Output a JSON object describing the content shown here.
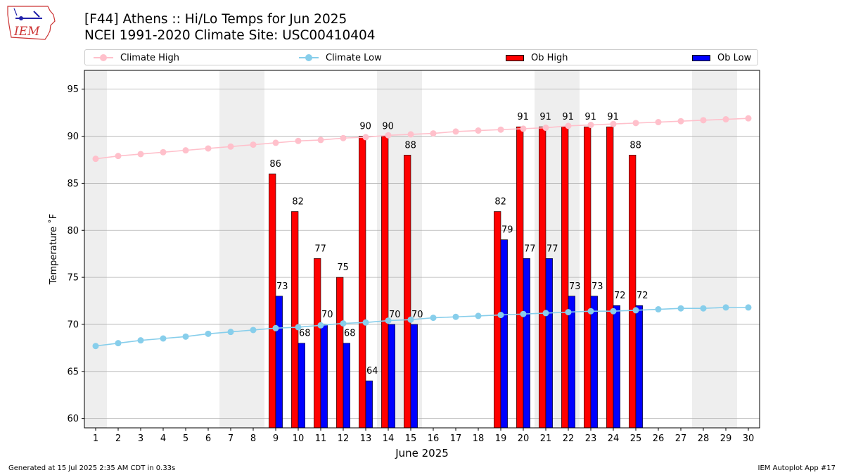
{
  "header": {
    "title_line1": "[F44] Athens :: Hi/Lo Temps for Jun 2025",
    "title_line2": "NCEI 1991-2020 Climate Site: USC00410404"
  },
  "logo": {
    "text": "IEM",
    "icon": "iem-iowa-weather-logo"
  },
  "legend": [
    {
      "label": "Climate High",
      "kind": "line",
      "color": "#ffc0cb"
    },
    {
      "label": "Climate Low",
      "kind": "line",
      "color": "#87ceeb"
    },
    {
      "label": "Ob High",
      "kind": "bar",
      "color": "#ff0000"
    },
    {
      "label": "Ob Low",
      "kind": "bar",
      "color": "#0000ff"
    }
  ],
  "footer": {
    "left": "Generated at 15 Jul 2025 2:35 AM CDT in 0.33s",
    "right": "IEM Autoplot App #17"
  },
  "chart_data": {
    "type": "bar",
    "title": "[F44] Athens :: Hi/Lo Temps for Jun 2025",
    "subtitle": "NCEI 1991-2020 Climate Site: USC00410404",
    "xlabel": "June 2025",
    "ylabel": "Temperature ˚F",
    "xlim": [
      0.5,
      30.5
    ],
    "ylim": [
      59,
      97
    ],
    "yticks": [
      60,
      65,
      70,
      75,
      80,
      85,
      90,
      95
    ],
    "grid": "horizontal",
    "legend_position": "top",
    "weekend_shading": [
      [
        0.5,
        1.5
      ],
      [
        6.5,
        8.5
      ],
      [
        13.5,
        15.5
      ],
      [
        20.5,
        22.5
      ],
      [
        27.5,
        29.5
      ]
    ],
    "shade_color": "#eeeeee",
    "days": [
      1,
      2,
      3,
      4,
      5,
      6,
      7,
      8,
      9,
      10,
      11,
      12,
      13,
      14,
      15,
      16,
      17,
      18,
      19,
      20,
      21,
      22,
      23,
      24,
      25,
      26,
      27,
      28,
      29,
      30
    ],
    "series": [
      {
        "name": "Climate High",
        "kind": "line",
        "color": "#ffc0cb",
        "values": [
          87.6,
          87.9,
          88.1,
          88.3,
          88.5,
          88.7,
          88.9,
          89.1,
          89.3,
          89.5,
          89.6,
          89.8,
          89.9,
          90.1,
          90.2,
          90.3,
          90.5,
          90.6,
          90.7,
          90.8,
          90.9,
          91.1,
          91.2,
          91.3,
          91.4,
          91.5,
          91.6,
          91.7,
          91.8,
          91.9
        ]
      },
      {
        "name": "Climate Low",
        "kind": "line",
        "color": "#87ceeb",
        "values": [
          67.7,
          68.0,
          68.3,
          68.5,
          68.7,
          69.0,
          69.2,
          69.4,
          69.6,
          69.7,
          69.9,
          70.1,
          70.2,
          70.4,
          70.5,
          70.7,
          70.8,
          70.9,
          71.0,
          71.1,
          71.2,
          71.3,
          71.4,
          71.4,
          71.5,
          71.6,
          71.7,
          71.7,
          71.8,
          71.8
        ]
      },
      {
        "name": "Ob High",
        "kind": "bar",
        "color": "#ff0000",
        "values": [
          null,
          null,
          null,
          null,
          null,
          null,
          null,
          null,
          86,
          82,
          77,
          75,
          90,
          90,
          88,
          null,
          null,
          null,
          82,
          91,
          91,
          91,
          91,
          91,
          88,
          null,
          null,
          null,
          null,
          null
        ]
      },
      {
        "name": "Ob Low",
        "kind": "bar",
        "color": "#0000ff",
        "values": [
          null,
          null,
          null,
          null,
          null,
          null,
          null,
          null,
          73,
          68,
          70,
          68,
          64,
          70,
          70,
          null,
          null,
          null,
          79,
          77,
          77,
          73,
          73,
          72,
          72,
          null,
          null,
          null,
          null,
          null
        ]
      }
    ]
  }
}
